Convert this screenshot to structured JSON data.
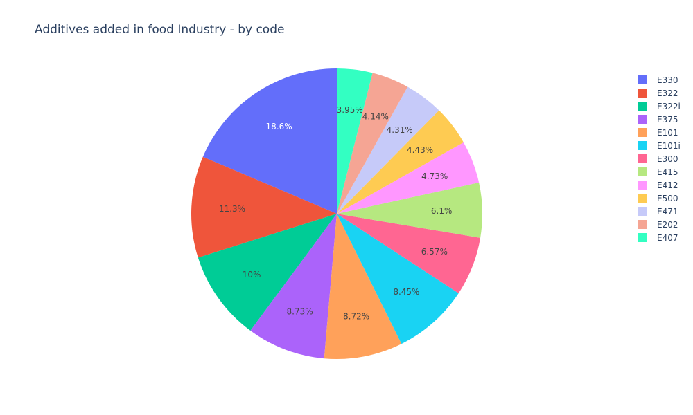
{
  "chart_data": {
    "type": "pie",
    "title": "Additives added in food Industry - by code",
    "slices": [
      {
        "label": "E330",
        "percent": 18.6,
        "percent_text": "18.6%",
        "color": "#636efa"
      },
      {
        "label": "E322",
        "percent": 11.3,
        "percent_text": "11.3%",
        "color": "#EF553B"
      },
      {
        "label": "E322i",
        "percent": 10,
        "percent_text": "10%",
        "color": "#00cc96"
      },
      {
        "label": "E375",
        "percent": 8.73,
        "percent_text": "8.73%",
        "color": "#ab63fa"
      },
      {
        "label": "E101",
        "percent": 8.72,
        "percent_text": "8.72%",
        "color": "#FFA15A"
      },
      {
        "label": "E101i",
        "percent": 8.45,
        "percent_text": "8.45%",
        "color": "#19d3f3"
      },
      {
        "label": "E300",
        "percent": 6.57,
        "percent_text": "6.57%",
        "color": "#FF6692"
      },
      {
        "label": "E415",
        "percent": 6.1,
        "percent_text": "6.1%",
        "color": "#B6E880"
      },
      {
        "label": "E412",
        "percent": 4.73,
        "percent_text": "4.73%",
        "color": "#FF97FF"
      },
      {
        "label": "E500",
        "percent": 4.43,
        "percent_text": "4.43%",
        "color": "#FECB52"
      },
      {
        "label": "E471",
        "percent": 4.31,
        "percent_text": "4.31%",
        "color": "#c6caf9"
      },
      {
        "label": "E202",
        "percent": 4.14,
        "percent_text": "4.14%",
        "color": "#f5a594"
      },
      {
        "label": "E407",
        "percent": 3.95,
        "percent_text": "3.95%",
        "color": "#33ffc2"
      }
    ],
    "direction": "counterclockwise",
    "legend_position": "right"
  }
}
